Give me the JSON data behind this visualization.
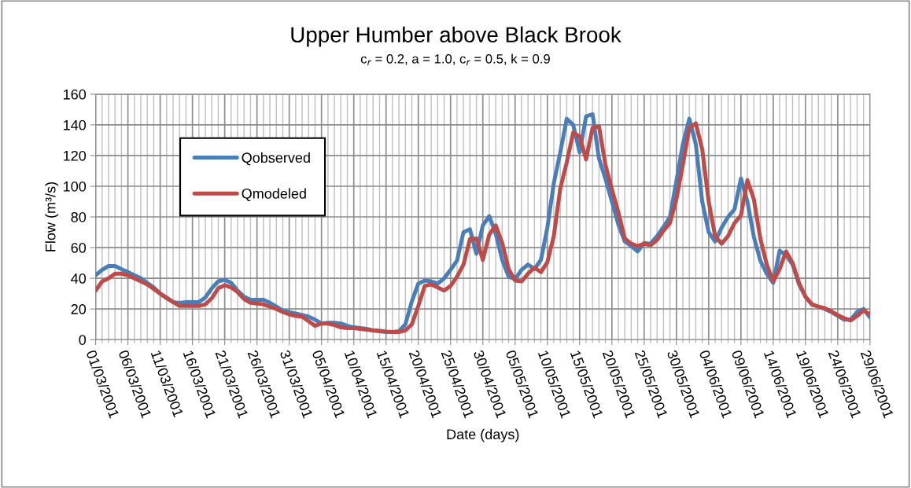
{
  "chart_data": {
    "type": "line",
    "title": "Upper Humber above Black Brook",
    "subtitle": "c$_{r}$ = 0.2, a = 1.0, c$_{r}$ = 0.5, k = 0.9",
    "xlabel": "Date (days)",
    "ylabel": "Flow (m³/s)",
    "x": [
      "2001-03-01",
      "2001-03-02",
      "2001-03-03",
      "2001-03-04",
      "2001-03-05",
      "2001-03-06",
      "2001-03-07",
      "2001-03-08",
      "2001-03-09",
      "2001-03-10",
      "2001-03-11",
      "2001-03-12",
      "2001-03-13",
      "2001-03-14",
      "2001-03-15",
      "2001-03-16",
      "2001-03-17",
      "2001-03-18",
      "2001-03-19",
      "2001-03-20",
      "2001-03-21",
      "2001-03-22",
      "2001-03-23",
      "2001-03-24",
      "2001-03-25",
      "2001-03-26",
      "2001-03-27",
      "2001-03-28",
      "2001-03-29",
      "2001-03-30",
      "2001-03-31",
      "2001-04-01",
      "2001-04-02",
      "2001-04-03",
      "2001-04-04",
      "2001-04-05",
      "2001-04-06",
      "2001-04-07",
      "2001-04-08",
      "2001-04-09",
      "2001-04-10",
      "2001-04-11",
      "2001-04-12",
      "2001-04-13",
      "2001-04-14",
      "2001-04-15",
      "2001-04-16",
      "2001-04-17",
      "2001-04-18",
      "2001-04-19",
      "2001-04-20",
      "2001-04-21",
      "2001-04-22",
      "2001-04-23",
      "2001-04-24",
      "2001-04-25",
      "2001-04-26",
      "2001-04-27",
      "2001-04-28",
      "2001-04-29",
      "2001-04-30",
      "2001-05-01",
      "2001-05-02",
      "2001-05-03",
      "2001-05-04",
      "2001-05-05",
      "2001-05-06",
      "2001-05-07",
      "2001-05-08",
      "2001-05-09",
      "2001-05-10",
      "2001-05-11",
      "2001-05-12",
      "2001-05-13",
      "2001-05-14",
      "2001-05-15",
      "2001-05-16",
      "2001-05-17",
      "2001-05-18",
      "2001-05-19",
      "2001-05-20",
      "2001-05-21",
      "2001-05-22",
      "2001-05-23",
      "2001-05-24",
      "2001-05-25",
      "2001-05-26",
      "2001-05-27",
      "2001-05-28",
      "2001-05-29",
      "2001-05-30",
      "2001-05-31",
      "2001-06-01",
      "2001-06-02",
      "2001-06-03",
      "2001-06-04",
      "2001-06-05",
      "2001-06-06",
      "2001-06-07",
      "2001-06-08",
      "2001-06-09",
      "2001-06-10",
      "2001-06-11",
      "2001-06-12",
      "2001-06-13",
      "2001-06-14",
      "2001-06-15",
      "2001-06-16",
      "2001-06-17",
      "2001-06-18",
      "2001-06-19",
      "2001-06-20",
      "2001-06-21",
      "2001-06-22",
      "2001-06-23",
      "2001-06-24",
      "2001-06-25",
      "2001-06-26",
      "2001-06-27",
      "2001-06-28",
      "2001-06-29"
    ],
    "series": [
      {
        "name": "Qobserved",
        "color": "#4a7ebb",
        "values": [
          42,
          45.5,
          48,
          48,
          46,
          44,
          42,
          40,
          37,
          34,
          30,
          27.5,
          24.5,
          24,
          24.5,
          24.5,
          24.5,
          27.5,
          33.5,
          38,
          39,
          37,
          32,
          28,
          26,
          26,
          26,
          24,
          21.5,
          19,
          18,
          17,
          16,
          15,
          13,
          10.5,
          11,
          11,
          10.5,
          9,
          8,
          7.5,
          7,
          6,
          5.5,
          5,
          5,
          5.5,
          10,
          25,
          36.5,
          38.5,
          38,
          36.5,
          40,
          45.5,
          51.5,
          70,
          72,
          56,
          74.5,
          80.5,
          69,
          52,
          41,
          39.5,
          45.5,
          49,
          46,
          52,
          73,
          102,
          122,
          144,
          140,
          122,
          145.5,
          147,
          118,
          105,
          90,
          75,
          64,
          61,
          57.5,
          63,
          62.5,
          67.5,
          73.5,
          80,
          103.5,
          127.5,
          144,
          127.5,
          90,
          70,
          64,
          73,
          80,
          85,
          105,
          90,
          67,
          51.5,
          43,
          37,
          58,
          55,
          49,
          36,
          28,
          23,
          21.5,
          20,
          18,
          15.5,
          13,
          13,
          18,
          20,
          14.5
        ]
      },
      {
        "name": "Qmodeled",
        "color": "#be4b48",
        "values": [
          32,
          38,
          40,
          43,
          43,
          42,
          40,
          38,
          36,
          33,
          30,
          27,
          24.5,
          22,
          22,
          22,
          22,
          23,
          27,
          33.5,
          35.5,
          34,
          31,
          26.5,
          24,
          23.5,
          23,
          21.5,
          20,
          18,
          16.5,
          15.5,
          15,
          12,
          9,
          10.5,
          10.5,
          9.5,
          8,
          7.5,
          7.5,
          7,
          6.5,
          6,
          5.8,
          5.3,
          5,
          5,
          6,
          10,
          22,
          35,
          36,
          34,
          32,
          35,
          41,
          49,
          65.5,
          66,
          52,
          68.5,
          74.5,
          63,
          46,
          38.5,
          38,
          43,
          47,
          44,
          50.5,
          67.5,
          98.5,
          115.5,
          135,
          132.5,
          117.5,
          138,
          139,
          114,
          98,
          83,
          66,
          62.5,
          61,
          62.5,
          61.5,
          65,
          71,
          76,
          91.5,
          114,
          138,
          141,
          124,
          90,
          67.5,
          62.5,
          67.5,
          76,
          81,
          104,
          91.5,
          66,
          49,
          38,
          46,
          57.5,
          50,
          37,
          28,
          23,
          21.5,
          20.5,
          18.5,
          16,
          14,
          12.5,
          15.5,
          19,
          16.5
        ]
      }
    ],
    "xlim": [
      "2001-03-01",
      "2001-06-29"
    ],
    "xticks": [
      {
        "value": "2001-03-01",
        "label": "01/03/2001"
      },
      {
        "value": "2001-03-06",
        "label": "06/03/2001"
      },
      {
        "value": "2001-03-11",
        "label": "11/03/2001"
      },
      {
        "value": "2001-03-16",
        "label": "16/03/2001"
      },
      {
        "value": "2001-03-21",
        "label": "21/03/2001"
      },
      {
        "value": "2001-03-26",
        "label": "26/03/2001"
      },
      {
        "value": "2001-03-31",
        "label": "31/03/2001"
      },
      {
        "value": "2001-04-05",
        "label": "05/04/2001"
      },
      {
        "value": "2001-04-10",
        "label": "10/04/2001"
      },
      {
        "value": "2001-04-15",
        "label": "15/04/2001"
      },
      {
        "value": "2001-04-20",
        "label": "20/04/2001"
      },
      {
        "value": "2001-04-25",
        "label": "25/04/2001"
      },
      {
        "value": "2001-04-30",
        "label": "30/04/2001"
      },
      {
        "value": "2001-05-05",
        "label": "05/05/2001"
      },
      {
        "value": "2001-05-10",
        "label": "10/05/2001"
      },
      {
        "value": "2001-05-15",
        "label": "15/05/2001"
      },
      {
        "value": "2001-05-20",
        "label": "20/05/2001"
      },
      {
        "value": "2001-05-25",
        "label": "25/05/2001"
      },
      {
        "value": "2001-05-30",
        "label": "30/05/2001"
      },
      {
        "value": "2001-06-04",
        "label": "04/06/2001"
      },
      {
        "value": "2001-06-09",
        "label": "09/06/2001"
      },
      {
        "value": "2001-06-14",
        "label": "14/06/2001"
      },
      {
        "value": "2001-06-19",
        "label": "19/06/2001"
      },
      {
        "value": "2001-06-24",
        "label": "24/06/2001"
      },
      {
        "value": "2001-06-29",
        "label": "29/06/2001"
      }
    ],
    "ylim": [
      0,
      160
    ],
    "yticks": [
      0,
      20,
      40,
      60,
      80,
      100,
      120,
      140,
      160
    ],
    "grid": true,
    "legend": "top left",
    "marker": "none",
    "line_style": "solid"
  }
}
